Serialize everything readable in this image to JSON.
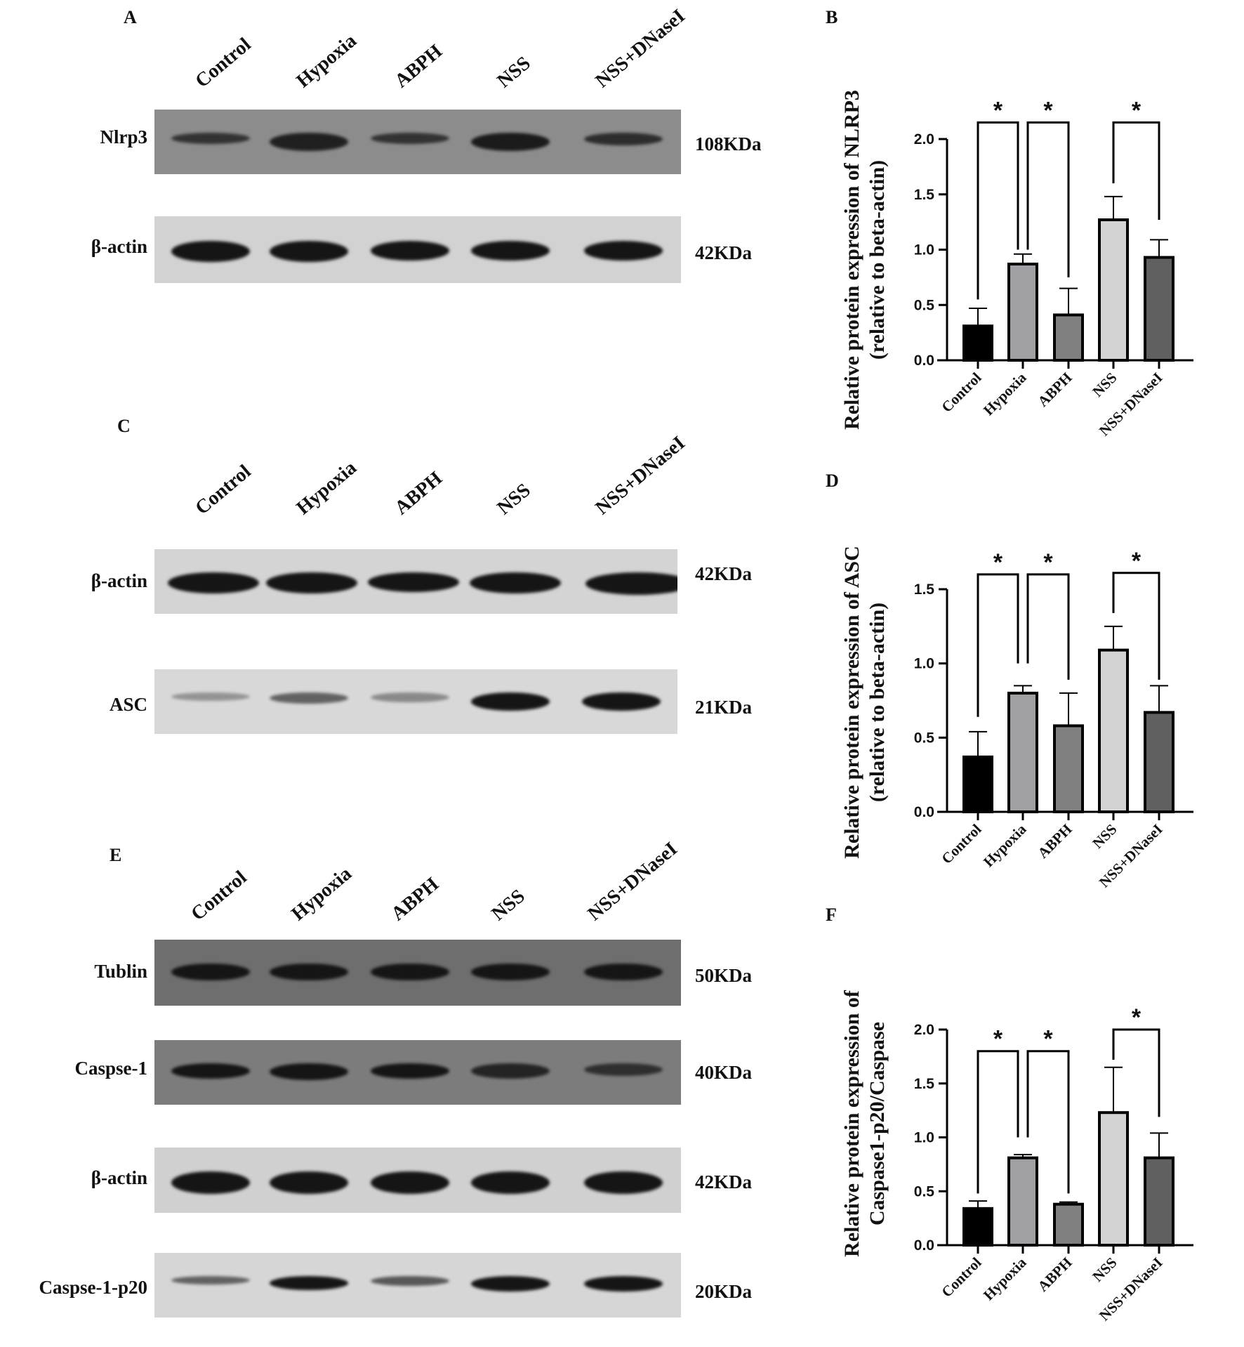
{
  "lanes": [
    "Control",
    "Hypoxia",
    "ABPH",
    "NSS",
    "NSS+DNaseI"
  ],
  "panels": {
    "A": {
      "letter": "A",
      "blots": [
        {
          "label": "Nlrp3",
          "size": "108KDa"
        },
        {
          "label": "β-actin",
          "size": "42KDa"
        }
      ]
    },
    "C": {
      "letter": "C",
      "blots": [
        {
          "label": "β-actin",
          "size": "42KDa"
        },
        {
          "label": "ASC",
          "size": "21KDa"
        }
      ]
    },
    "E": {
      "letter": "E",
      "blots": [
        {
          "label": "Tublin",
          "size": "50KDa"
        },
        {
          "label": "Caspse-1",
          "size": "40KDa"
        },
        {
          "label": "β-actin",
          "size": "42KDa"
        },
        {
          "label": "Caspse-1-p20",
          "size": "20KDa"
        }
      ]
    },
    "B": {
      "letter": "B"
    },
    "D": {
      "letter": "D"
    },
    "F": {
      "letter": "F"
    }
  },
  "bar_colors": [
    "#000000",
    "#a0a0a4",
    "#808080",
    "#d3d3d3",
    "#606060"
  ],
  "chart_data": [
    {
      "type": "bar",
      "panel": "B",
      "categories": [
        "Control",
        "Hypoxia",
        "ABPH",
        "NSS",
        "NSS+DNaseI"
      ],
      "values": [
        0.31,
        0.87,
        0.41,
        1.27,
        0.93
      ],
      "error_upper": [
        0.47,
        0.96,
        0.65,
        1.48,
        1.09
      ],
      "ylabel_lines": [
        "Relative protein expression of NLRP3",
        "(relative to beta-actin)"
      ],
      "ylim": [
        0,
        2.0
      ],
      "yticks": [
        "0.0",
        "0.5",
        "1.0",
        "1.5",
        "2.0"
      ],
      "grid": false,
      "significance": [
        {
          "from": 0,
          "to": 1,
          "label": "*",
          "level": 2.15,
          "legs": [
            0.55,
            1.0
          ]
        },
        {
          "from": 1,
          "to": 2,
          "label": "*",
          "level": 2.15,
          "legs": [
            1.0,
            0.75
          ]
        },
        {
          "from": 3,
          "to": 4,
          "label": "*",
          "level": 2.15,
          "legs": [
            1.6,
            1.27
          ]
        }
      ]
    },
    {
      "type": "bar",
      "panel": "D",
      "categories": [
        "Control",
        "Hypoxia",
        "ABPH",
        "NSS",
        "NSS+DNaseI"
      ],
      "values": [
        0.37,
        0.8,
        0.58,
        1.09,
        0.67
      ],
      "error_upper": [
        0.54,
        0.85,
        0.8,
        1.25,
        0.85
      ],
      "ylabel_lines": [
        "Relative protein expression of ASC",
        "(relative to beta-actin)"
      ],
      "ylim": [
        0,
        1.5
      ],
      "yticks": [
        "0.0",
        "0.5",
        "1.0",
        "1.5"
      ],
      "grid": false,
      "significance": [
        {
          "from": 0,
          "to": 1,
          "label": "*",
          "level": 1.6,
          "legs": [
            0.64,
            1.0
          ]
        },
        {
          "from": 1,
          "to": 2,
          "label": "*",
          "level": 1.6,
          "legs": [
            1.0,
            0.89
          ]
        },
        {
          "from": 3,
          "to": 4,
          "label": "*",
          "level": 1.61,
          "legs": [
            1.34,
            0.89
          ]
        }
      ]
    },
    {
      "type": "bar",
      "panel": "F",
      "categories": [
        "Control",
        "Hypoxia",
        "ABPH",
        "NSS",
        "NSS+DNaseI"
      ],
      "values": [
        0.34,
        0.81,
        0.38,
        1.23,
        0.81
      ],
      "error_upper": [
        0.41,
        0.84,
        0.4,
        1.65,
        1.04
      ],
      "ylabel_lines": [
        "Relative protein expression of",
        "Caspase1-p20/Caspase"
      ],
      "ylim": [
        0,
        2.0
      ],
      "yticks": [
        "0.0",
        "0.5",
        "1.0",
        "1.5",
        "2.0"
      ],
      "grid": false,
      "significance": [
        {
          "from": 0,
          "to": 1,
          "label": "*",
          "level": 1.8,
          "legs": [
            0.48,
            1.0
          ]
        },
        {
          "from": 1,
          "to": 2,
          "label": "*",
          "level": 1.8,
          "legs": [
            1.0,
            0.48
          ]
        },
        {
          "from": 3,
          "to": 4,
          "label": "*",
          "level": 2.0,
          "legs": [
            1.72,
            1.19
          ]
        }
      ]
    }
  ]
}
